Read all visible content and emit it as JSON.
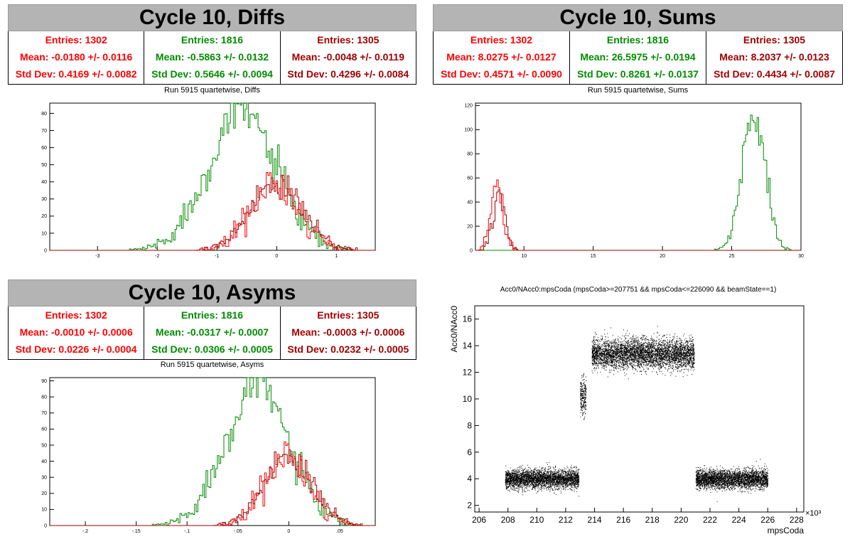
{
  "colors": {
    "red": "#ff0000",
    "green": "#008c00",
    "dark_red": "#a00000",
    "title_bg": "#b4b4b4"
  },
  "panels": {
    "diffs": {
      "title": "Cycle 10, Diffs",
      "hist_title": "Run 5915 quartetwise, Diffs",
      "stats": [
        {
          "entries": "Entries: 1302",
          "mean": "Mean: -0.0180 +/- 0.0116",
          "std": "Std Dev: 0.4169 +/- 0.0082"
        },
        {
          "entries": "Entries: 1816",
          "mean": "Mean: -0.5863 +/- 0.0132",
          "std": "Std Dev: 0.5646 +/- 0.0094"
        },
        {
          "entries": "Entries: 1305",
          "mean": "Mean: -0.0048 +/- 0.0119",
          "std": "Std Dev: 0.4296 +/- 0.0084"
        }
      ]
    },
    "sums": {
      "title": "Cycle 10, Sums",
      "hist_title": "Run 5915 quartetwise, Sums",
      "stats": [
        {
          "entries": "Entries: 1302",
          "mean": "Mean: 8.0275 +/- 0.0127",
          "std": "Std Dev: 0.4571 +/- 0.0090"
        },
        {
          "entries": "Entries: 1816",
          "mean": "Mean: 26.5975 +/- 0.0194",
          "std": "Std Dev: 0.8261 +/- 0.0137"
        },
        {
          "entries": "Entries: 1305",
          "mean": "Mean: 8.2037 +/- 0.0123",
          "std": "Std Dev: 0.4434 +/- 0.0087"
        }
      ]
    },
    "asyms": {
      "title": "Cycle 10, Asyms",
      "hist_title": "Run 5915 quartetwise, Asyms",
      "stats": [
        {
          "entries": "Entries: 1302",
          "mean": "Mean: -0.0010 +/- 0.0006",
          "std": "Std Dev: 0.0226 +/- 0.0004"
        },
        {
          "entries": "Entries: 1816",
          "mean": "Mean: -0.0317 +/- 0.0007",
          "std": "Std Dev: 0.0306 +/- 0.0005"
        },
        {
          "entries": "Entries: 1305",
          "mean": "Mean: -0.0003 +/- 0.0006",
          "std": "Std Dev: 0.0232 +/- 0.0005"
        }
      ]
    },
    "scatter": {
      "title": "Acc0/NAcc0:mpsCoda (mpsCoda>=207751 && mpsCoda<=226090 && beamState==1)",
      "xlabel": "mpsCoda",
      "ylabel": "Acc0/NAcc0",
      "exponent": "×10³"
    }
  },
  "chart_data": [
    {
      "type": "histogram",
      "title": "Run 5915 quartetwise, Diffs",
      "xlim": [
        -3.8,
        1.65
      ],
      "ylim": [
        0,
        86
      ],
      "xticks": [
        -3,
        -2,
        -1,
        0,
        1
      ],
      "yticks": [
        0,
        10,
        20,
        30,
        40,
        50,
        60,
        70,
        80
      ],
      "series": [
        {
          "color": "#008c00",
          "mean": -0.5863,
          "std": 0.5646,
          "peak": 82
        },
        {
          "color": "#ff0000",
          "mean": -0.018,
          "std": 0.4169,
          "peak": 38
        },
        {
          "color": "#a00000",
          "mean": -0.0048,
          "std": 0.4296,
          "peak": 40
        }
      ]
    },
    {
      "type": "histogram",
      "title": "Run 5915 quartetwise, Sums",
      "xlim": [
        6.5,
        30
      ],
      "ylim": [
        0,
        122
      ],
      "xticks": [
        10,
        15,
        20,
        25,
        30
      ],
      "yticks": [
        0,
        20,
        40,
        60,
        80,
        100,
        120
      ],
      "series": [
        {
          "color": "#008c00",
          "mean": 26.5975,
          "std": 0.8261,
          "peak": 116
        },
        {
          "color": "#ff0000",
          "mean": 8.0275,
          "std": 0.4571,
          "peak": 55
        },
        {
          "color": "#a00000",
          "mean": 8.2037,
          "std": 0.4434,
          "peak": 45
        }
      ]
    },
    {
      "type": "histogram",
      "title": "Run 5915 quartetwise, Asyms",
      "xlim": [
        -0.235,
        0.085
      ],
      "ylim": [
        0,
        92
      ],
      "xticks": [
        -0.2,
        -0.15,
        -0.1,
        -0.05,
        0,
        0.05
      ],
      "yticks": [
        0,
        10,
        20,
        30,
        40,
        50,
        60,
        70,
        80,
        90
      ],
      "series": [
        {
          "color": "#008c00",
          "mean": -0.0317,
          "std": 0.0306,
          "peak": 89
        },
        {
          "color": "#ff0000",
          "mean": -0.001,
          "std": 0.0226,
          "peak": 42
        },
        {
          "color": "#a00000",
          "mean": -0.0003,
          "std": 0.0232,
          "peak": 44
        }
      ]
    },
    {
      "type": "scatter",
      "title": "Acc0/NAcc0:mpsCoda (mpsCoda>=207751 && mpsCoda<=226090 && beamState==1)",
      "xlabel": "mpsCoda",
      "ylabel": "Acc0/NAcc0",
      "x_units": "x10^3",
      "xlim": [
        205.7,
        228.5
      ],
      "ylim": [
        1.5,
        17
      ],
      "xticks": [
        206,
        208,
        210,
        212,
        214,
        216,
        218,
        220,
        222,
        224,
        226,
        228
      ],
      "yticks": [
        2,
        4,
        6,
        8,
        10,
        12,
        14,
        16
      ],
      "clusters": [
        {
          "x_range": [
            207.8,
            212.9
          ],
          "y_center": 4.0,
          "y_spread": 0.35
        },
        {
          "x_range": [
            213.0,
            213.4
          ],
          "y_center": 10.2,
          "y_spread": 0.7
        },
        {
          "x_range": [
            213.8,
            220.9
          ],
          "y_center": 13.4,
          "y_spread": 0.55
        },
        {
          "x_range": [
            221.0,
            226.0
          ],
          "y_center": 4.0,
          "y_spread": 0.35
        }
      ]
    }
  ]
}
